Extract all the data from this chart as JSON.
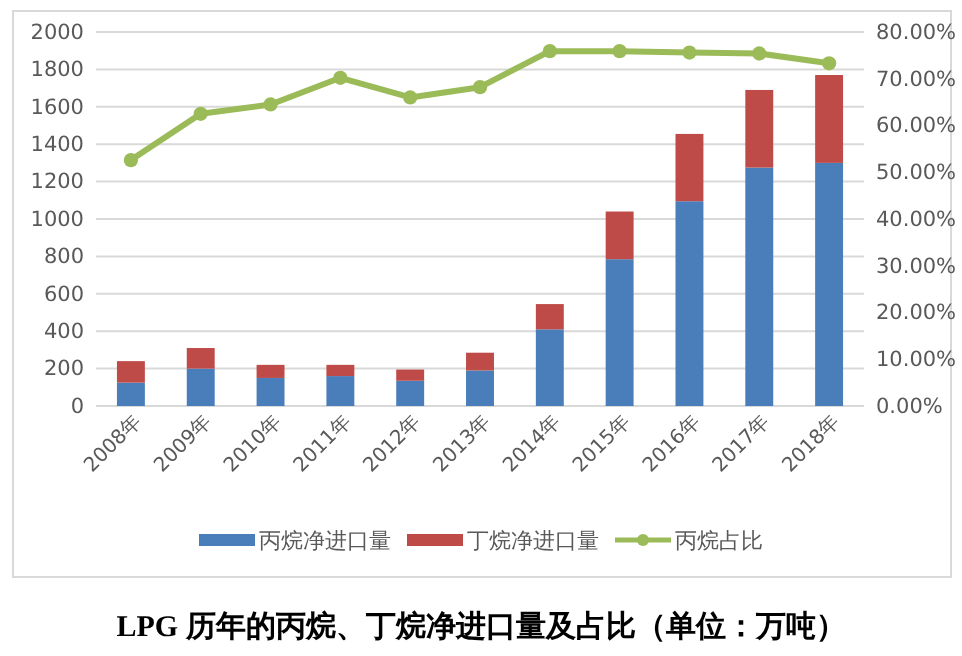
{
  "chart_data": {
    "type": "bar",
    "stacked": true,
    "title": "LPG 历年的丙烷、丁烷净进口量及占比（单位：万吨）",
    "categories": [
      "2008年",
      "2009年",
      "2010年",
      "2011年",
      "2012年",
      "2013年",
      "2014年",
      "2015年",
      "2016年",
      "2017年",
      "2018年"
    ],
    "series": [
      {
        "name": "丙烷净进口量",
        "color": "#4a7ebb",
        "values": [
          125,
          200,
          150,
          160,
          135,
          190,
          410,
          785,
          1095,
          1275,
          1300
        ]
      },
      {
        "name": "丁烷净进口量",
        "color": "#be4b48",
        "values": [
          115,
          110,
          70,
          60,
          60,
          95,
          135,
          255,
          360,
          415,
          470
        ]
      },
      {
        "name": "丙烷占比",
        "type": "line",
        "axis": "y2",
        "color": "#9bbb59",
        "marker": "circle",
        "values": [
          52.6,
          62.5,
          64.5,
          70.2,
          66.0,
          68.2,
          75.9,
          75.9,
          75.6,
          75.4,
          73.3
        ]
      }
    ],
    "ylim": [
      0,
      2000
    ],
    "yticks": [
      0,
      200,
      400,
      600,
      800,
      1000,
      1200,
      1400,
      1600,
      1800,
      2000
    ],
    "y2lim": [
      0,
      80
    ],
    "y2ticks": [
      {
        "value": 0,
        "label": "0.00%"
      },
      {
        "value": 10,
        "label": "10.00%"
      },
      {
        "value": 20,
        "label": "20.00%"
      },
      {
        "value": 30,
        "label": "30.00%"
      },
      {
        "value": 40,
        "label": "40.00%"
      },
      {
        "value": 50,
        "label": "50.00%"
      },
      {
        "value": 60,
        "label": "60.00%"
      },
      {
        "value": 70,
        "label": "70.00%"
      },
      {
        "value": 80,
        "label": "80.00%"
      }
    ],
    "grid": "y",
    "legend": "bottom"
  }
}
